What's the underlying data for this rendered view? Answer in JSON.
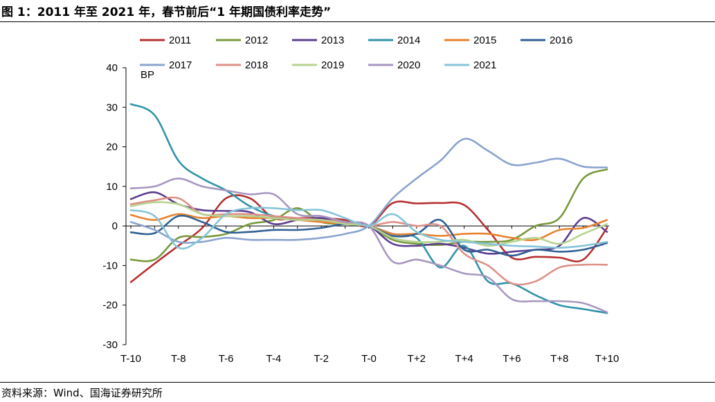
{
  "header": {
    "title": "图 1：2011 年至 2021 年，春节前后“1 年期国债利率走势”"
  },
  "footer": {
    "source": "资料来源：Wind、国海证券研究所"
  },
  "chart_data": {
    "type": "line",
    "ylabel": "BP",
    "ylim": [
      -30,
      40
    ],
    "yticks": [
      -30,
      -20,
      -10,
      0,
      10,
      20,
      30,
      40
    ],
    "x": [
      "T-10",
      "T-9",
      "T-8",
      "T-7",
      "T-6",
      "T-5",
      "T-4",
      "T-3",
      "T-2",
      "T-1",
      "T-0",
      "T+1",
      "T+2",
      "T+3",
      "T+4",
      "T+5",
      "T+6",
      "T+7",
      "T+8",
      "T+9",
      "T+10"
    ],
    "xtick_labels": [
      "T-10",
      "T-8",
      "T-6",
      "T-4",
      "T-2",
      "T-0",
      "T+2",
      "T+4",
      "T+6",
      "T+8",
      "T+10"
    ],
    "legend_position": "top",
    "series": [
      {
        "name": "2011",
        "color": "#b5302f",
        "values": [
          -14.2,
          -9.5,
          -5,
          -0.5,
          7,
          7,
          2,
          2,
          2,
          1.5,
          0,
          5.8,
          5.7,
          5.8,
          5.3,
          -1,
          -8,
          -7.8,
          -8,
          -8.5,
          -0.5
        ]
      },
      {
        "name": "2012",
        "color": "#77993c",
        "values": [
          -8.5,
          -8.5,
          -3,
          -2.8,
          -2,
          0.5,
          1.5,
          4.5,
          1,
          0.5,
          0,
          -3.5,
          -4.5,
          -4.8,
          -4,
          -4,
          -3.5,
          0,
          2,
          12,
          14.3
        ]
      },
      {
        "name": "2013",
        "color": "#5c3d8f",
        "values": [
          6.8,
          8.5,
          5.5,
          4,
          3.8,
          3.5,
          0.5,
          1.5,
          2,
          0.5,
          0,
          -4.5,
          -5,
          -4.5,
          -5.5,
          -7,
          -6.5,
          -6,
          -5,
          2,
          -1.5
        ]
      },
      {
        "name": "2014",
        "color": "#2f93a8",
        "values": [
          30.8,
          28,
          16.5,
          12,
          9,
          5,
          2.5,
          1.5,
          1.5,
          0.5,
          0,
          -2,
          -3,
          -10.5,
          -5,
          -14,
          -14.5,
          -17.5,
          -20,
          -21,
          -22
        ]
      },
      {
        "name": "2015",
        "color": "#e7812f",
        "values": [
          2.8,
          1.5,
          3,
          2,
          2.5,
          2,
          2,
          1.5,
          1,
          0.5,
          0,
          -2,
          -2,
          -2.5,
          -2,
          -2,
          -3,
          -3.5,
          -1,
          -0.5,
          1.5
        ]
      },
      {
        "name": "2016",
        "color": "#2f5f94",
        "values": [
          -1.6,
          -1.8,
          2.5,
          1,
          -1.5,
          -1.5,
          -1,
          -1,
          -0.5,
          0.5,
          0,
          -2.5,
          -2,
          1.5,
          -6,
          -6,
          -7.5,
          -6,
          -6.5,
          -6,
          -4.3
        ]
      },
      {
        "name": "2017",
        "color": "#8aa3cd",
        "values": [
          1,
          -1,
          -4,
          -4,
          -3,
          -3.5,
          -3.5,
          -3.5,
          -3,
          -2,
          0,
          7,
          12,
          16.5,
          22,
          19,
          15.5,
          16,
          17,
          15,
          14.8
        ]
      },
      {
        "name": "2018",
        "color": "#de8f88",
        "values": [
          5.5,
          6.5,
          7,
          3,
          3,
          3,
          2.5,
          2,
          1.5,
          1,
          0,
          1,
          0,
          0,
          -7,
          -10,
          -14.5,
          -14,
          -10.5,
          -9.8,
          -9.8
        ]
      },
      {
        "name": "2019",
        "color": "#b6d38f",
        "values": [
          5,
          6,
          5.5,
          3,
          2.5,
          2.5,
          2,
          1.5,
          1.5,
          0.5,
          0,
          -3,
          -4,
          -4,
          -3.5,
          -5,
          -4,
          -3,
          -4.5,
          -2,
          0.5
        ]
      },
      {
        "name": "2020",
        "color": "#a796c0",
        "values": [
          9.5,
          10,
          12,
          10,
          9,
          8,
          8,
          3,
          2.5,
          1,
          0,
          -9,
          -8.5,
          -10,
          -12,
          -13,
          -18.5,
          -19,
          -19,
          -19.5,
          -21.8
        ]
      },
      {
        "name": "2021",
        "color": "#86c4d8",
        "values": [
          4,
          2.5,
          -5.5,
          -3,
          3,
          4.5,
          4.5,
          4,
          4,
          2,
          0,
          3,
          -1.5,
          -3.5,
          -4,
          -4.5,
          -5,
          -5.2,
          -5.5,
          -5,
          -4
        ]
      }
    ]
  }
}
